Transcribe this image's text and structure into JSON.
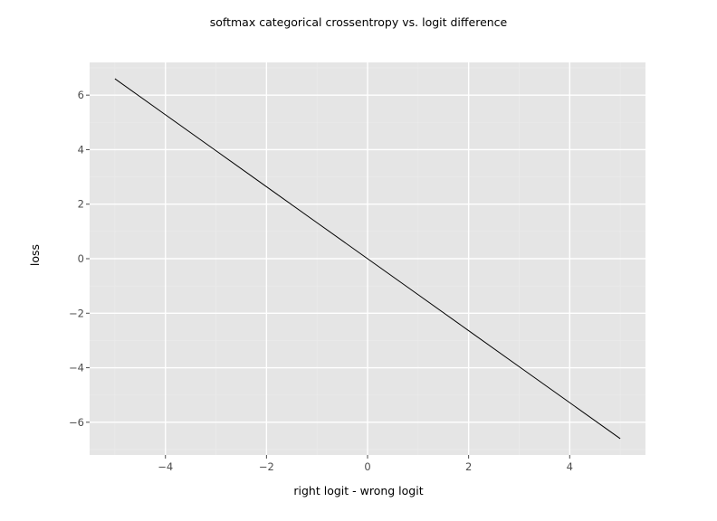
{
  "chart_data": {
    "type": "line",
    "title": "softmax categorical crossentropy vs. logit difference",
    "xlabel": "right logit - wrong logit",
    "ylabel": "loss",
    "xlim": [
      -5.5,
      5.5
    ],
    "ylim": [
      -7.2,
      7.2
    ],
    "x_ticks": [
      -4,
      -2,
      0,
      2,
      4
    ],
    "y_ticks": [
      -6,
      -4,
      -2,
      0,
      2,
      4,
      6
    ],
    "x_tick_labels": [
      "−4",
      "−2",
      "0",
      "2",
      "4"
    ],
    "y_tick_labels": [
      "−6",
      "−4",
      "−2",
      "0",
      "2",
      "4",
      "6"
    ],
    "grid": true,
    "series": [
      {
        "color": "#000000",
        "x": [
          -5,
          -4,
          -3,
          -2,
          -1,
          0,
          1,
          2,
          3,
          4,
          5
        ],
        "y": [
          6.6,
          5.28,
          3.96,
          2.64,
          1.32,
          0,
          -1.32,
          -2.64,
          -3.96,
          -5.28,
          -6.6
        ]
      }
    ]
  },
  "colors": {
    "panel_background": "#e5e5e5",
    "major_grid": "#ffffff",
    "minor_grid": "#ebebeb",
    "tick_text": "#4d4d4d",
    "line": "#000000"
  }
}
